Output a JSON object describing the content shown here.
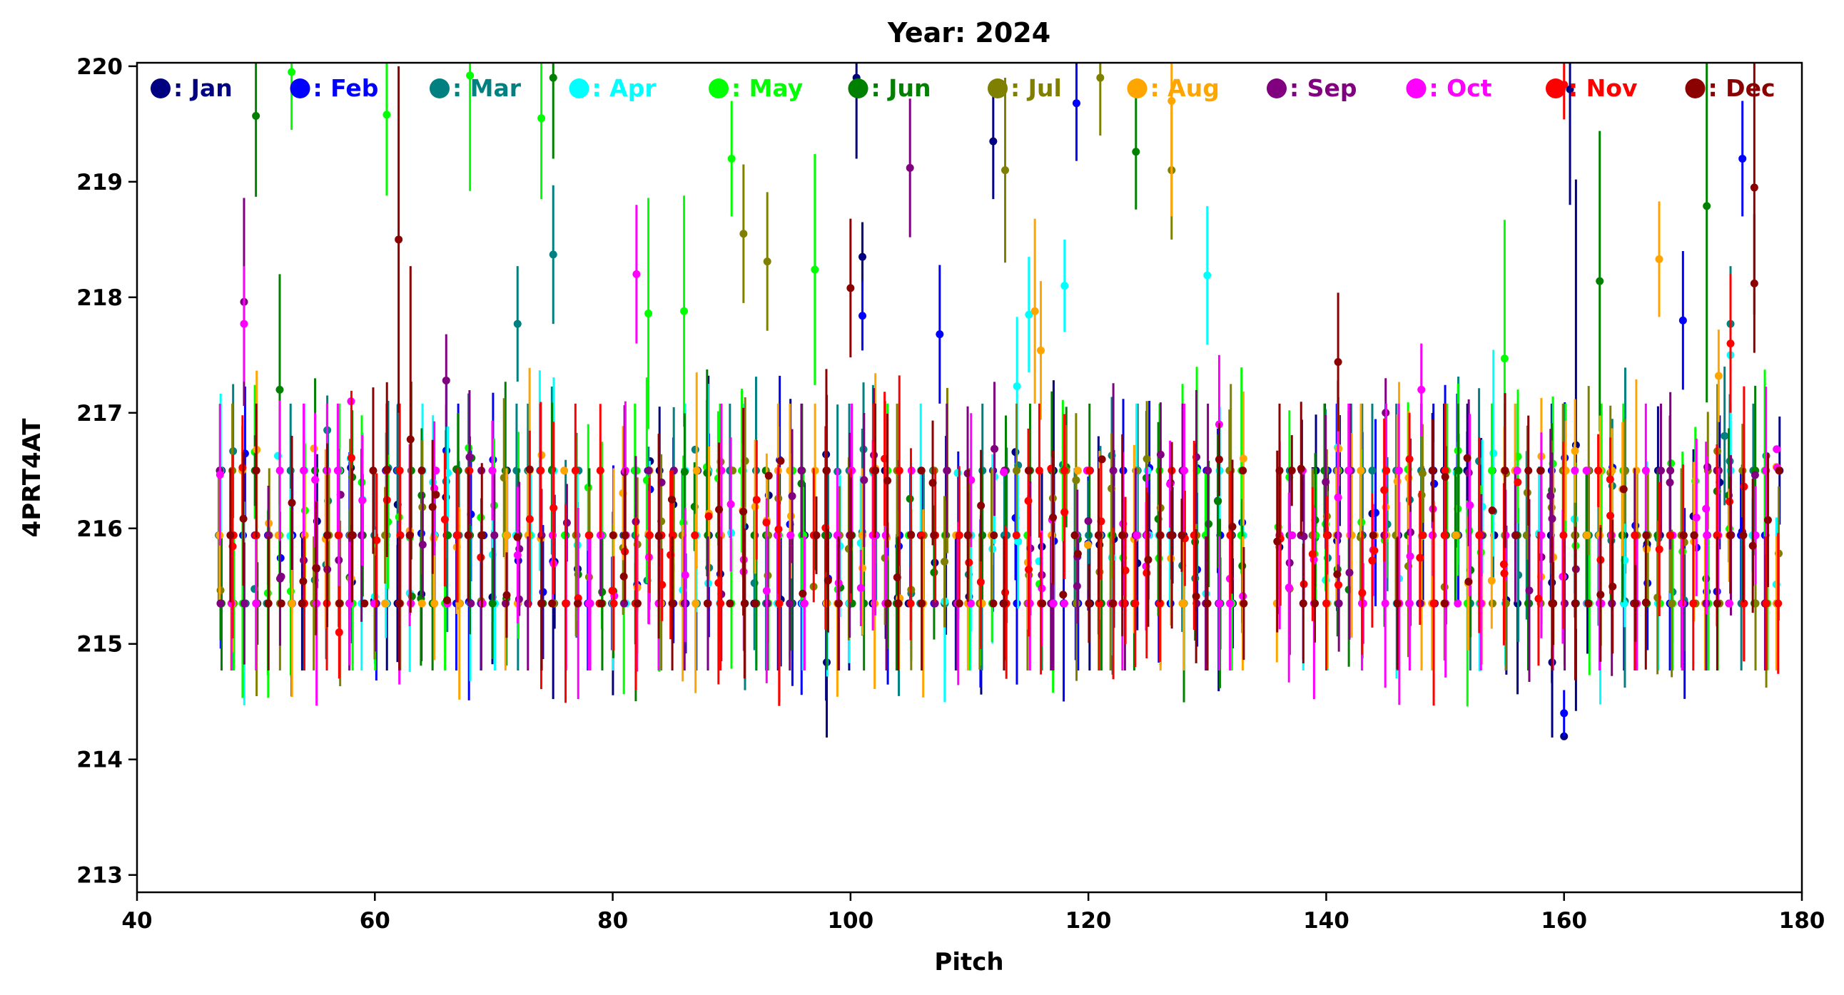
{
  "chart_data": {
    "type": "scatter",
    "subtype": "errorbar",
    "title": "Year: 2024",
    "xlabel": "Pitch",
    "ylabel": "4PRT4AT",
    "xlim": [
      40,
      180
    ],
    "ylim": [
      212.85,
      220.03
    ],
    "xticks": [
      "40",
      "60",
      "80",
      "100",
      "120",
      "140",
      "160",
      "180"
    ],
    "xtick_values": [
      40,
      60,
      80,
      100,
      120,
      140,
      160,
      180
    ],
    "yticks": [
      "213",
      "214",
      "215",
      "216",
      "217",
      "218",
      "219",
      "220"
    ],
    "ytick_values": [
      213,
      214,
      215,
      216,
      217,
      218,
      219,
      220
    ],
    "legend_location": "top, inside plot, single row",
    "grid": false,
    "pitch_range": [
      47,
      178
    ],
    "baseline_band": [
      215.35,
      216.5
    ],
    "series": [
      {
        "name": ": Jan",
        "color": "#000080",
        "anchors": [
          [
            98,
            214.84,
            0.65
          ],
          [
            100.5,
            219.9,
            0.7
          ],
          [
            101,
            218.35,
            0.3
          ],
          [
            112,
            219.35,
            0.5
          ],
          [
            160,
            214.2,
            0.0
          ],
          [
            159,
            214.84,
            0.65
          ],
          [
            161,
            216.72,
            2.3
          ],
          [
            160.5,
            219.8,
            1.0
          ]
        ]
      },
      {
        "name": ": Feb",
        "color": "#0000ff",
        "anchors": [
          [
            119,
            219.68,
            0.5
          ],
          [
            101,
            217.84,
            0.3
          ],
          [
            107.5,
            217.68,
            0.6
          ],
          [
            160,
            214.4,
            0.2
          ],
          [
            175,
            219.2,
            0.5
          ],
          [
            170,
            217.8,
            0.6
          ]
        ]
      },
      {
        "name": ": Mar",
        "color": "#008080",
        "anchors": [
          [
            75,
            218.37,
            0.6
          ],
          [
            72,
            217.77,
            0.5
          ],
          [
            56,
            216.85,
            0.3
          ],
          [
            174,
            217.77,
            0.5
          ],
          [
            173.5,
            216.8,
            0.6
          ]
        ]
      },
      {
        "name": ": Apr",
        "color": "#00ffff",
        "anchors": [
          [
            130,
            218.19,
            0.6
          ],
          [
            115,
            217.85,
            0.5
          ],
          [
            118,
            218.1,
            0.4
          ],
          [
            114,
            217.23,
            0.6
          ],
          [
            174,
            217.5,
            0.4
          ]
        ]
      },
      {
        "name": ": May",
        "color": "#00ff00",
        "anchors": [
          [
            53,
            219.95,
            0.5
          ],
          [
            61,
            219.58,
            0.7
          ],
          [
            68,
            219.92,
            1.0
          ],
          [
            74,
            219.55,
            0.7
          ],
          [
            90,
            219.2,
            0.5
          ],
          [
            97,
            218.24,
            1.0
          ],
          [
            155,
            217.47,
            1.2
          ],
          [
            83,
            217.86,
            1.0
          ],
          [
            86,
            217.88,
            1.0
          ]
        ]
      },
      {
        "name": ": Jun",
        "color": "#008000",
        "anchors": [
          [
            50,
            219.57,
            0.7
          ],
          [
            52,
            217.2,
            1.0
          ],
          [
            124,
            219.26,
            0.5
          ],
          [
            163,
            218.14,
            1.3
          ],
          [
            172,
            218.79,
            1.7
          ],
          [
            75,
            219.9,
            0.7
          ]
        ]
      },
      {
        "name": ": Jul",
        "color": "#808000",
        "anchors": [
          [
            113,
            219.1,
            0.8
          ],
          [
            121,
            219.9,
            0.5
          ],
          [
            127,
            219.1,
            0.6
          ],
          [
            91,
            218.55,
            0.6
          ],
          [
            93,
            218.31,
            0.6
          ]
        ]
      },
      {
        "name": ": Aug",
        "color": "#ffa500",
        "anchors": [
          [
            127,
            219.7,
            1.0
          ],
          [
            115.5,
            217.88,
            0.8
          ],
          [
            116,
            217.54,
            0.6
          ],
          [
            168,
            218.33,
            0.5
          ],
          [
            173,
            217.32,
            0.4
          ]
        ]
      },
      {
        "name": ": Sep",
        "color": "#800080",
        "anchors": [
          [
            105,
            219.12,
            0.6
          ],
          [
            49,
            217.96,
            0.9
          ],
          [
            66,
            217.28,
            0.4
          ],
          [
            145,
            217.0,
            0.3
          ]
        ]
      },
      {
        "name": ": Oct",
        "color": "#ff00ff",
        "anchors": [
          [
            49,
            217.77,
            0.5
          ],
          [
            82,
            218.2,
            0.6
          ],
          [
            58,
            217.1,
            0.0
          ],
          [
            148,
            217.2,
            0.4
          ],
          [
            131,
            216.9,
            0.6
          ]
        ]
      },
      {
        "name": ": Nov",
        "color": "#ff0000",
        "anchors": [
          [
            160,
            219.84,
            0.3
          ],
          [
            174,
            217.6,
            0.6
          ],
          [
            147,
            216.6,
            0.4
          ],
          [
            57,
            215.1,
            0.4
          ]
        ]
      },
      {
        "name": ": Dec",
        "color": "#8b0000",
        "anchors": [
          [
            62,
            218.5,
            1.5
          ],
          [
            63,
            216.77,
            1.5
          ],
          [
            100,
            218.08,
            0.6
          ],
          [
            141,
            217.44,
            0.6
          ],
          [
            176,
            218.95,
            1.1
          ],
          [
            176,
            218.12,
            0.6
          ]
        ]
      }
    ]
  }
}
